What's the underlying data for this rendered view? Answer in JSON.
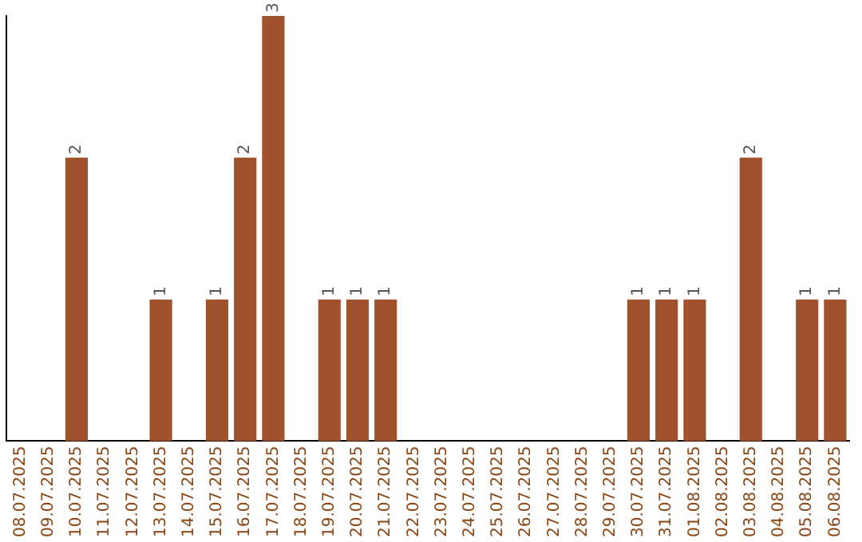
{
  "chart_data": {
    "type": "bar",
    "categories": [
      "08.07.2025",
      "09.07.2025",
      "10.07.2025",
      "11.07.2025",
      "12.07.2025",
      "13.07.2025",
      "14.07.2025",
      "15.07.2025",
      "16.07.2025",
      "17.07.2025",
      "18.07.2025",
      "19.07.2025",
      "20.07.2025",
      "21.07.2025",
      "22.07.2025",
      "23.07.2025",
      "24.07.2025",
      "25.07.2025",
      "26.07.2025",
      "27.07.2025",
      "28.07.2025",
      "29.07.2025",
      "30.07.2025",
      "31.07.2025",
      "01.08.2025",
      "02.08.2025",
      "03.08.2025",
      "04.08.2025",
      "05.08.2025",
      "06.08.2025"
    ],
    "values": [
      0,
      0,
      2,
      0,
      0,
      1,
      0,
      1,
      2,
      3,
      0,
      1,
      1,
      1,
      0,
      0,
      0,
      0,
      0,
      0,
      0,
      0,
      1,
      1,
      1,
      0,
      2,
      0,
      1,
      1
    ],
    "value_labels": [
      null,
      null,
      "2",
      null,
      null,
      "1",
      null,
      "1",
      "2",
      "3",
      null,
      "1",
      "1",
      "1",
      null,
      null,
      null,
      null,
      null,
      null,
      null,
      null,
      "1",
      "1",
      "1",
      null,
      "2",
      null,
      "1",
      "1"
    ],
    "color": "#a0522d",
    "grid": false,
    "legend": false,
    "tick_labels": "x"
  }
}
